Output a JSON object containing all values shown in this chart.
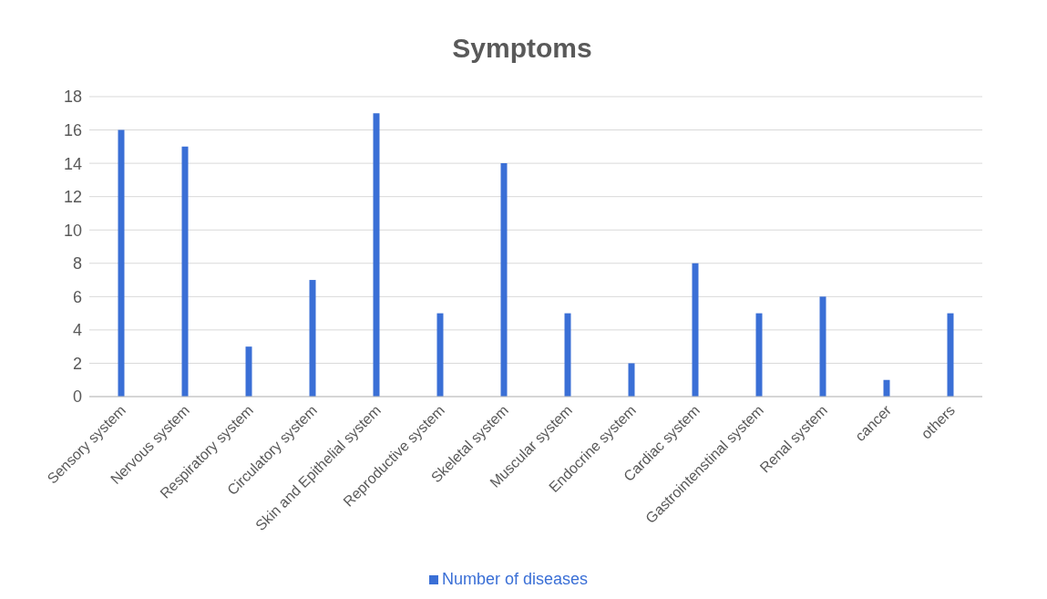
{
  "chart_data": {
    "type": "bar",
    "title": "Symptoms",
    "categories": [
      "Sensory system",
      "Nervous system",
      "Respiratory system",
      "Circulatory system",
      "Skin and Epithelial system",
      "Reproductive system",
      "Skeletal system",
      "Muscular system",
      "Endocrine system",
      "Cardiac system",
      "Gastrointenstinal system",
      "Renal system",
      "cancer",
      "others"
    ],
    "series": [
      {
        "name": "Number of diseases",
        "color": "#3a6fd6",
        "values": [
          16,
          15,
          3,
          7,
          17,
          5,
          14,
          5,
          2,
          8,
          5,
          6,
          1,
          5
        ]
      }
    ],
    "ylim": [
      0,
      18
    ],
    "yticks": [
      0,
      2,
      4,
      6,
      8,
      10,
      12,
      14,
      16,
      18
    ],
    "grid": "y",
    "legend": "bottom"
  }
}
